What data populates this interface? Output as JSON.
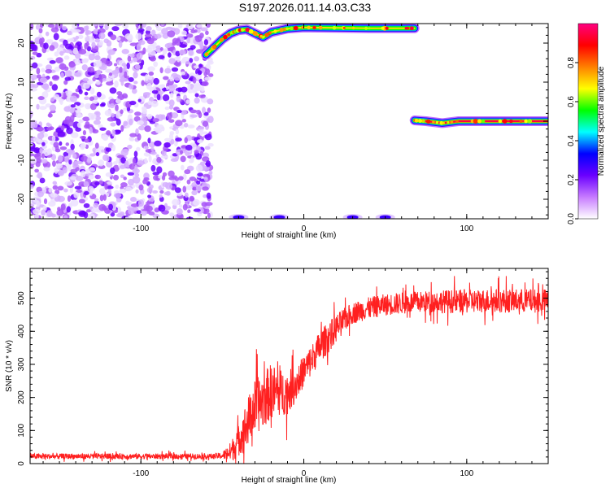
{
  "title": "S197.2026.011.14.03.C33",
  "chart_data": [
    {
      "type": "heatmap",
      "xlabel": "Height of straight line (km)",
      "ylabel": "Frequency (Hz)",
      "xlim": [
        -168,
        150
      ],
      "ylim": [
        -25,
        25
      ],
      "x_ticks": [
        -100,
        0,
        100
      ],
      "y_ticks": [
        -20,
        -10,
        0,
        10,
        20
      ],
      "colorbar": {
        "label": "Normalized spectral amplitude",
        "range": [
          0,
          1
        ],
        "ticks": [
          "0.0",
          "0.2",
          "0.4",
          "0.6",
          "0.8"
        ],
        "colors": [
          "#ffffff",
          "#c77bff",
          "#6a00ff",
          "#0000ff",
          "#00ffff",
          "#00ff00",
          "#ffff00",
          "#ff8000",
          "#ff0000",
          "#ff0080"
        ]
      },
      "features": [
        {
          "name": "noise_band",
          "x_range": [
            -168,
            -57
          ],
          "y_range": [
            -25,
            25
          ],
          "amplitude": 0.15
        },
        {
          "name": "upper_arc",
          "x": [
            -60,
            -55,
            -50,
            -45,
            -40,
            -35,
            -30,
            -25,
            -20,
            -10,
            0,
            20,
            40,
            60,
            68
          ],
          "y": [
            17,
            19,
            21,
            22.5,
            23.3,
            23.5,
            22.5,
            21.5,
            22.8,
            23.7,
            24,
            23.9,
            23.8,
            23.8,
            23.8
          ],
          "amplitude": 0.7
        },
        {
          "name": "bottom_spots",
          "x": [
            -40,
            -15,
            30,
            50
          ],
          "y": [
            -24.6,
            -24.6,
            -24.6,
            -24.6
          ],
          "amplitude": 0.5
        },
        {
          "name": "zero_line",
          "x": [
            68,
            75,
            85,
            95,
            110,
            130,
            150
          ],
          "y": [
            0.2,
            0,
            -0.5,
            0,
            0,
            0,
            0
          ],
          "amplitude": 0.95
        }
      ]
    },
    {
      "type": "line",
      "xlabel": "Height of straight line (km)",
      "ylabel": "SNR (10 * v/v)",
      "xlim": [
        -168,
        150
      ],
      "ylim": [
        0,
        590
      ],
      "x_ticks": [
        -100,
        0,
        100
      ],
      "y_ticks": [
        0,
        100,
        200,
        300,
        400,
        500
      ],
      "color": "#ff2020",
      "x": [
        -168,
        -140,
        -100,
        -70,
        -55,
        -50,
        -45,
        -40,
        -35,
        -30,
        -25,
        -20,
        -15,
        -10,
        -5,
        0,
        5,
        10,
        15,
        20,
        25,
        30,
        40,
        50,
        60,
        70,
        80,
        90,
        100,
        110,
        120,
        130,
        140,
        150
      ],
      "y": [
        22,
        22,
        22,
        22,
        22,
        24,
        35,
        70,
        120,
        170,
        190,
        220,
        215,
        215,
        240,
        280,
        315,
        355,
        380,
        410,
        435,
        455,
        470,
        480,
        485,
        488,
        490,
        490,
        490,
        492,
        492,
        492,
        492,
        492
      ],
      "noise_amplitude": [
        14,
        14,
        14,
        14,
        14,
        18,
        50,
        80,
        120,
        140,
        140,
        140,
        120,
        110,
        90,
        80,
        80,
        80,
        80,
        70,
        60,
        55,
        55,
        55,
        55,
        55,
        55,
        60,
        60,
        60,
        60,
        60,
        60,
        60
      ]
    }
  ]
}
